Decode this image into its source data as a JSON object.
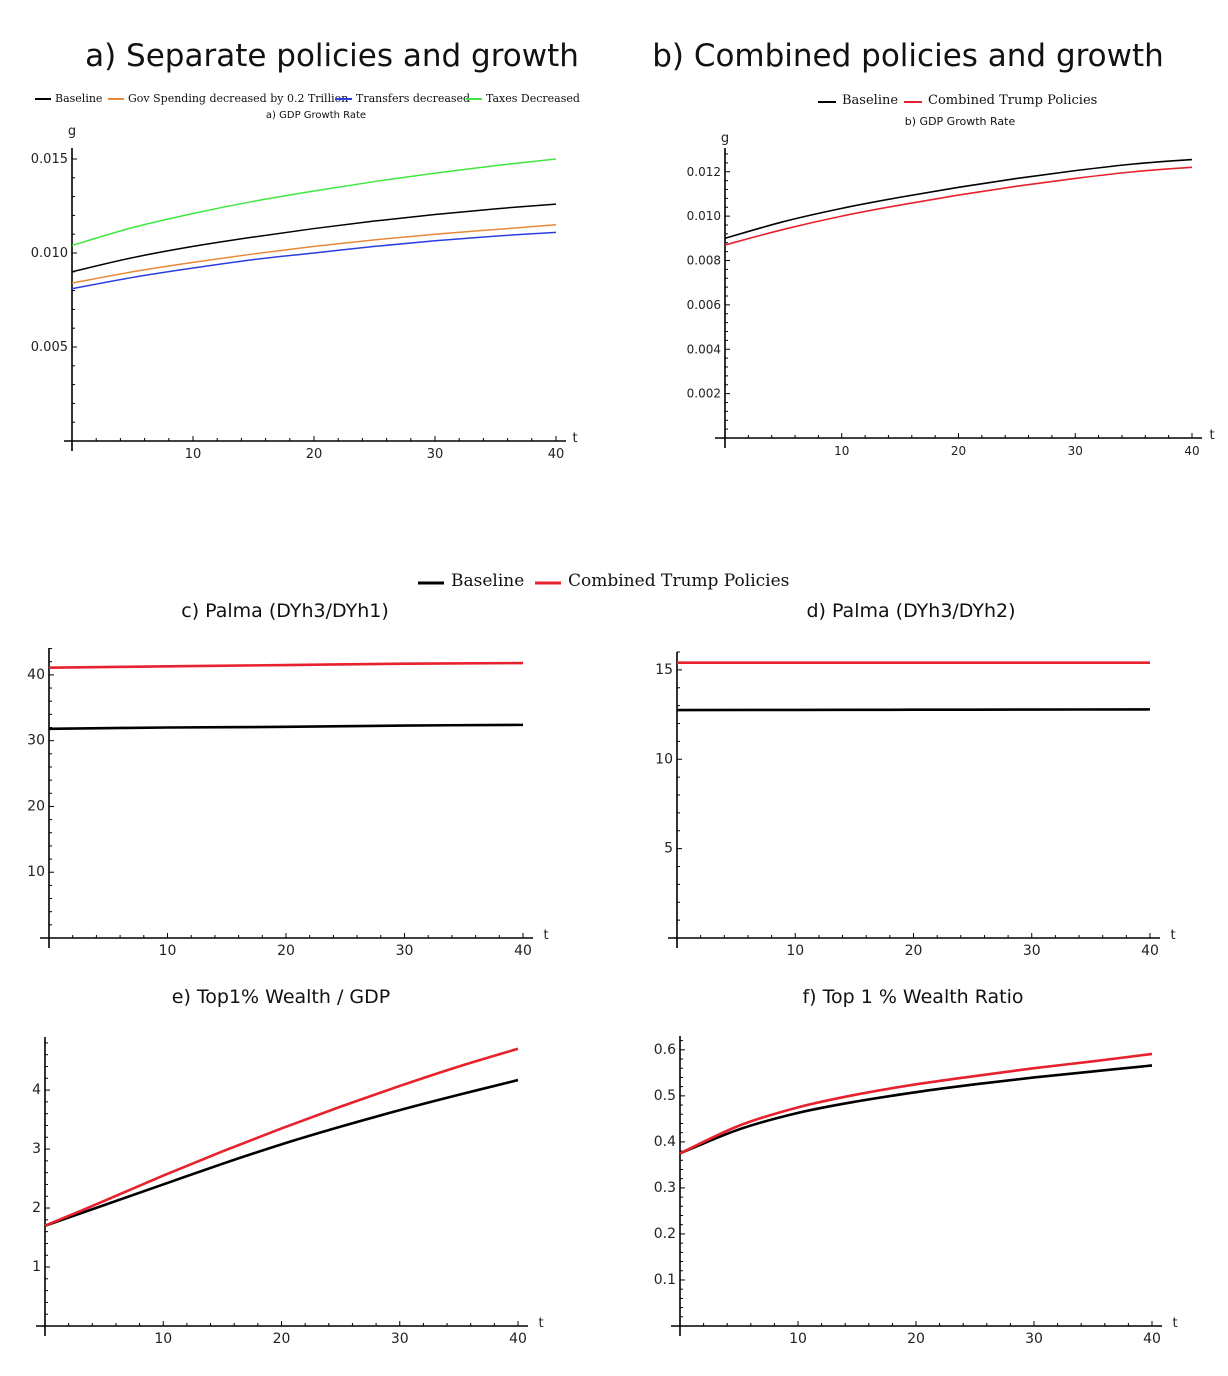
{
  "colors": {
    "baseline": "#000000",
    "gov_spending": "#e8893a",
    "transfers": "#2a3ee0",
    "taxes": "#3fe83f",
    "combined": "#e8212e"
  },
  "titles": {
    "a_big": "a) Separate policies and growth",
    "b_big": "b) Combined policies and growth",
    "a_small": "a) GDP Growth Rate",
    "b_small": "b) GDP Growth Rate",
    "c": "c) Palma (DYh3/DYh1)",
    "d": "d) Palma (DYh3/DYh2)",
    "e": "e) Top1% Wealth / GDP",
    "f": "f) Top 1 % Wealth Ratio"
  },
  "legends": {
    "a": [
      "Baseline",
      "Gov Spending decreased by 0.2 Trillion",
      "Transfers decreased",
      "Taxes Decreased"
    ],
    "b": [
      "Baseline",
      "Combined Trump Policies"
    ],
    "shared": [
      "Baseline",
      "Combined Trump Policies"
    ]
  },
  "chart_data": [
    {
      "id": "a",
      "type": "line",
      "title": "a) GDP Growth Rate",
      "xlabel": "t",
      "ylabel": "g",
      "xlim": [
        0,
        40
      ],
      "ylim": [
        0,
        0.015
      ],
      "xticks": [
        10,
        20,
        30,
        40
      ],
      "yticks": [
        0.005,
        0.01,
        0.015
      ],
      "ytick_labels": [
        "0.005",
        "0.010",
        "0.015"
      ],
      "x": [
        0,
        5,
        10,
        15,
        20,
        25,
        30,
        35,
        40
      ],
      "series": [
        {
          "name": "Baseline",
          "values": [
            0.009,
            0.00975,
            0.01035,
            0.01085,
            0.0113,
            0.0117,
            0.01205,
            0.01235,
            0.0126
          ]
        },
        {
          "name": "Gov Spending decreased by 0.2 Trillion",
          "values": [
            0.0084,
            0.009,
            0.0095,
            0.00995,
            0.01035,
            0.0107,
            0.011,
            0.01125,
            0.0115
          ]
        },
        {
          "name": "Transfers decreased",
          "values": [
            0.0081,
            0.0087,
            0.0092,
            0.00965,
            0.01,
            0.01035,
            0.01065,
            0.0109,
            0.0111
          ]
        },
        {
          "name": "Taxes Decreased",
          "values": [
            0.0104,
            0.01135,
            0.0121,
            0.01275,
            0.0133,
            0.0138,
            0.01425,
            0.01465,
            0.015
          ]
        }
      ]
    },
    {
      "id": "b",
      "type": "line",
      "title": "b) GDP Growth Rate",
      "xlabel": "t",
      "ylabel": "g",
      "xlim": [
        0,
        40
      ],
      "ylim": [
        0,
        0.0128
      ],
      "xticks": [
        10,
        20,
        30,
        40
      ],
      "yticks": [
        0.002,
        0.004,
        0.006,
        0.008,
        0.01,
        0.012
      ],
      "ytick_labels": [
        "0.002",
        "0.004",
        "0.006",
        "0.008",
        "0.010",
        "0.012"
      ],
      "x": [
        0,
        5,
        10,
        15,
        20,
        25,
        30,
        35,
        40
      ],
      "series": [
        {
          "name": "Baseline",
          "values": [
            0.009,
            0.00975,
            0.01035,
            0.01085,
            0.0113,
            0.0117,
            0.01205,
            0.01235,
            0.01255
          ]
        },
        {
          "name": "Combined Trump Policies",
          "values": [
            0.0087,
            0.0094,
            0.01,
            0.0105,
            0.01095,
            0.01135,
            0.0117,
            0.012,
            0.0122
          ]
        }
      ]
    },
    {
      "id": "c",
      "type": "line",
      "title": "c) Palma (DYh3/DYh1)",
      "xlabel": "t",
      "ylabel": "",
      "xlim": [
        0,
        40
      ],
      "ylim": [
        0,
        45
      ],
      "xticks": [
        10,
        20,
        30,
        40
      ],
      "yticks": [
        10,
        20,
        30,
        40
      ],
      "ytick_labels": [
        "10",
        "20",
        "30",
        "40"
      ],
      "x": [
        0,
        10,
        20,
        30,
        40
      ],
      "series": [
        {
          "name": "Baseline",
          "values": [
            31.8,
            32.0,
            32.1,
            32.3,
            32.4
          ]
        },
        {
          "name": "Combined Trump Policies",
          "values": [
            41.1,
            41.3,
            41.5,
            41.7,
            41.8
          ]
        }
      ]
    },
    {
      "id": "d",
      "type": "line",
      "title": "d) Palma (DYh3/DYh2)",
      "xlabel": "t",
      "ylabel": "",
      "xlim": [
        0,
        40
      ],
      "ylim": [
        0,
        16
      ],
      "xticks": [
        10,
        20,
        30,
        40
      ],
      "yticks": [
        5,
        10,
        15
      ],
      "ytick_labels": [
        "5",
        "10",
        "15"
      ],
      "x": [
        0,
        10,
        20,
        30,
        40
      ],
      "series": [
        {
          "name": "Baseline",
          "values": [
            12.75,
            12.76,
            12.77,
            12.78,
            12.79
          ]
        },
        {
          "name": "Combined Trump Policies",
          "values": [
            15.4,
            15.4,
            15.4,
            15.4,
            15.4
          ]
        }
      ]
    },
    {
      "id": "e",
      "type": "line",
      "title": "e) Top1% Wealth / GDP",
      "xlabel": "t",
      "ylabel": "",
      "xlim": [
        0,
        40
      ],
      "ylim": [
        0,
        4.9
      ],
      "xticks": [
        10,
        20,
        30,
        40
      ],
      "yticks": [
        1,
        2,
        3,
        4
      ],
      "ytick_labels": [
        "1",
        "2",
        "3",
        "4"
      ],
      "x": [
        0,
        5,
        10,
        15,
        20,
        25,
        30,
        35,
        40
      ],
      "series": [
        {
          "name": "Baseline",
          "values": [
            1.7,
            2.05,
            2.4,
            2.75,
            3.08,
            3.38,
            3.66,
            3.92,
            4.17
          ]
        },
        {
          "name": "Combined Trump Policies",
          "values": [
            1.7,
            2.12,
            2.55,
            2.96,
            3.35,
            3.72,
            4.07,
            4.4,
            4.7
          ]
        }
      ]
    },
    {
      "id": "f",
      "type": "line",
      "title": "f) Top 1 % Wealth Ratio",
      "xlabel": "t",
      "ylabel": "",
      "xlim": [
        0,
        40
      ],
      "ylim": [
        0,
        0.63
      ],
      "xticks": [
        10,
        20,
        30,
        40
      ],
      "yticks": [
        0.1,
        0.2,
        0.3,
        0.4,
        0.5,
        0.6
      ],
      "ytick_labels": [
        "0.1",
        "0.2",
        "0.3",
        "0.4",
        "0.5",
        "0.6"
      ],
      "x": [
        0,
        5,
        10,
        15,
        20,
        25,
        30,
        35,
        40
      ],
      "series": [
        {
          "name": "Baseline",
          "values": [
            0.375,
            0.427,
            0.463,
            0.488,
            0.508,
            0.525,
            0.54,
            0.553,
            0.566
          ]
        },
        {
          "name": "Combined Trump Policies",
          "values": [
            0.375,
            0.435,
            0.475,
            0.503,
            0.525,
            0.543,
            0.56,
            0.575,
            0.591
          ]
        }
      ]
    }
  ]
}
